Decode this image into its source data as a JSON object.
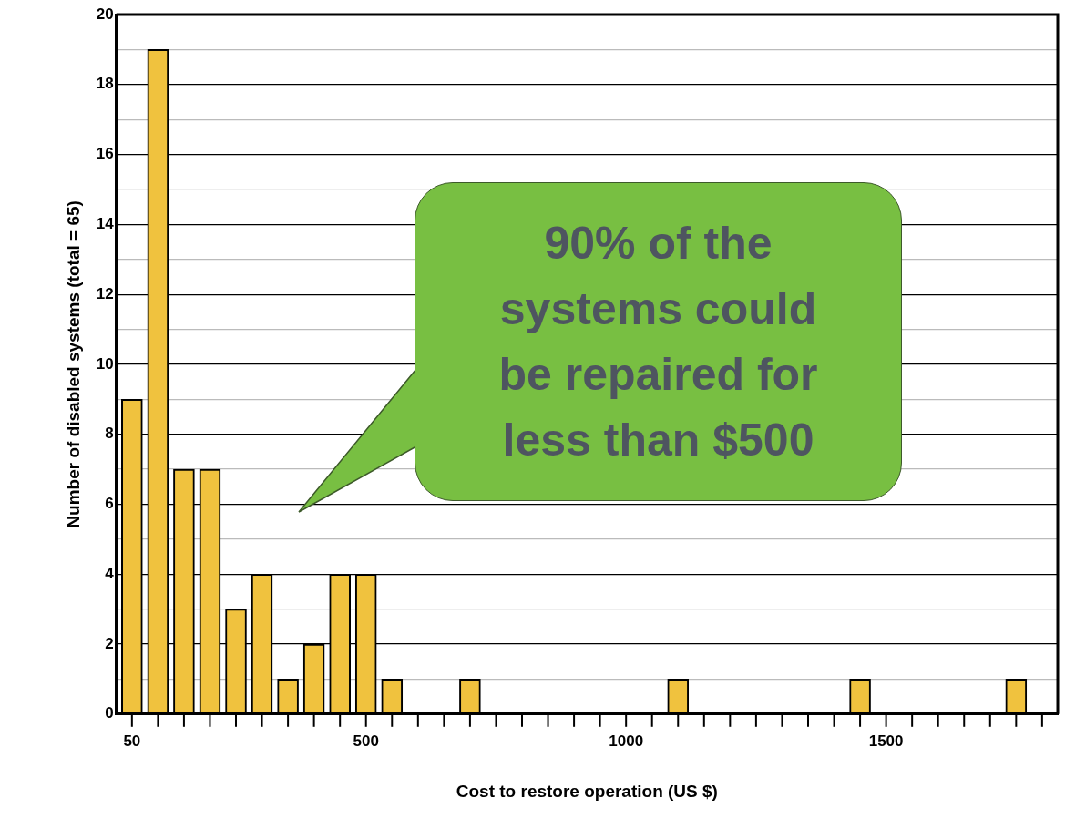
{
  "chart_data": {
    "type": "bar",
    "xlabel": "Cost to restore operation (US $)",
    "ylabel": "Number of disabled systems (total = 65)",
    "x": [
      50,
      100,
      150,
      200,
      250,
      300,
      350,
      400,
      450,
      500,
      550,
      700,
      1100,
      1450,
      1750
    ],
    "values": [
      9,
      19,
      7,
      7,
      3,
      4,
      1,
      2,
      4,
      4,
      1,
      1,
      1,
      1,
      1
    ],
    "color": "#f0c23e",
    "xlim": [
      20,
      1830
    ],
    "xticks": [
      50,
      {
        "value": 100,
        "label": null
      },
      {
        "value": 150,
        "label": null
      },
      {
        "value": 200,
        "label": null
      },
      {
        "value": 250,
        "label": null
      },
      {
        "value": 300,
        "label": null
      },
      {
        "value": 350,
        "label": null
      },
      {
        "value": 400,
        "label": null
      },
      {
        "value": 450,
        "label": null
      },
      500,
      {
        "value": 550,
        "label": null
      },
      {
        "value": 600,
        "label": null
      },
      {
        "value": 650,
        "label": null
      },
      {
        "value": 700,
        "label": null
      },
      {
        "value": 750,
        "label": null
      },
      {
        "value": 800,
        "label": null
      },
      {
        "value": 850,
        "label": null
      },
      {
        "value": 900,
        "label": null
      },
      {
        "value": 950,
        "label": null
      },
      1000,
      {
        "value": 1050,
        "label": null
      },
      {
        "value": 1100,
        "label": null
      },
      {
        "value": 1150,
        "label": null
      },
      {
        "value": 1200,
        "label": null
      },
      {
        "value": 1250,
        "label": null
      },
      {
        "value": 1300,
        "label": null
      },
      {
        "value": 1350,
        "label": null
      },
      {
        "value": 1400,
        "label": null
      },
      {
        "value": 1450,
        "label": null
      },
      1500,
      {
        "value": 1550,
        "label": null
      },
      {
        "value": 1600,
        "label": null
      },
      {
        "value": 1650,
        "label": null
      },
      {
        "value": 1700,
        "label": null
      },
      {
        "value": 1750,
        "label": null
      },
      {
        "value": 1800,
        "label": null
      }
    ],
    "ylim": [
      0,
      20
    ],
    "yticks": [
      0,
      {
        "value": 1,
        "label": null
      },
      2,
      {
        "value": 3,
        "label": null
      },
      4,
      {
        "value": 5,
        "label": null
      },
      6,
      {
        "value": 7,
        "label": null
      },
      8,
      {
        "value": 9,
        "label": null
      },
      10,
      {
        "value": 11,
        "label": null
      },
      12,
      {
        "value": 13,
        "label": null
      },
      14,
      {
        "value": 15,
        "label": null
      },
      16,
      {
        "value": 17,
        "label": null
      },
      18,
      {
        "value": 19,
        "label": null
      },
      20
    ],
    "grid": "y",
    "annotations": [
      "90% of the systems could be repaired for less than $500"
    ]
  }
}
